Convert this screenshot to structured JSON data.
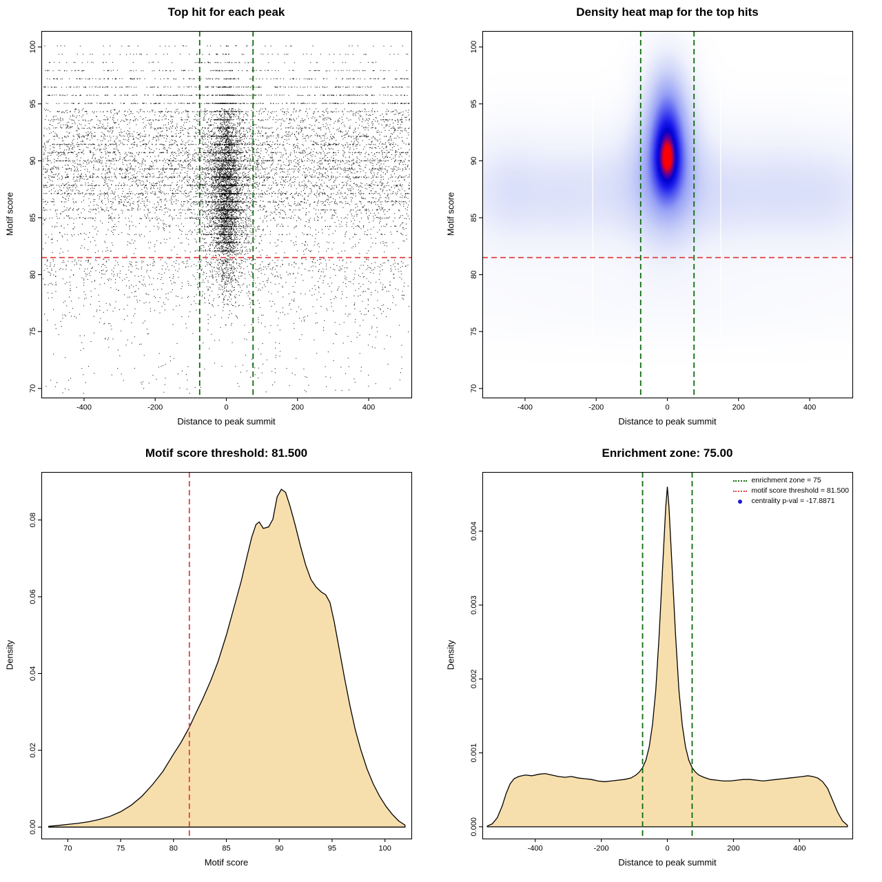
{
  "figure": {
    "background": "#ffffff"
  },
  "chart_data": [
    {
      "type": "scatter",
      "title": "Top hit for each peak",
      "xlabel": "Distance to peak summit",
      "ylabel": "Motif score",
      "xlim": [
        -520,
        520
      ],
      "ylim": [
        69.2,
        101.4
      ],
      "xticks": [
        -400,
        -200,
        0,
        200,
        400
      ],
      "xtick_labels": [
        "-400",
        "-200",
        "0",
        "200",
        "400"
      ],
      "yticks": [
        70,
        75,
        80,
        85,
        90,
        95,
        100
      ],
      "ytick_labels": [
        "70",
        "75",
        "80",
        "85",
        "90",
        "95",
        "100"
      ],
      "point_color": "#000000",
      "threshold_line": {
        "value": 81.5,
        "color": "#e04040",
        "orientation": "horizontal",
        "style": "dashed"
      },
      "zone_lines": {
        "values": [
          -75,
          75
        ],
        "color": "#0b6b0b",
        "style": "dashed"
      },
      "model": {
        "seed": 1234,
        "n_background": 8500,
        "n_cluster": 2400,
        "n_core": 1500,
        "n_tight": 900,
        "cluster_sd": 40,
        "core_sd": 20,
        "tight_sd": 11
      }
    },
    {
      "type": "heatmap",
      "title": "Density heat map for the top hits",
      "xlabel": "Distance to peak summit",
      "ylabel": "Motif score",
      "xlim": [
        -520,
        520
      ],
      "ylim": [
        69.2,
        101.4
      ],
      "xticks": [
        -400,
        -200,
        0,
        200,
        400
      ],
      "xtick_labels": [
        "-400",
        "-200",
        "0",
        "200",
        "400"
      ],
      "yticks": [
        70,
        75,
        80,
        85,
        90,
        95,
        100
      ],
      "ytick_labels": [
        "70",
        "75",
        "80",
        "85",
        "90",
        "95",
        "100"
      ],
      "threshold_line": {
        "value": 81.5,
        "color": "#e04040",
        "orientation": "horizontal",
        "style": "dashed"
      },
      "zone_lines": {
        "values": [
          -75,
          75
        ],
        "color": "#0b6b0b",
        "style": "dashed"
      },
      "colormap": [
        [
          0.0,
          "#ffffff"
        ],
        [
          0.1,
          "#f0f2fc"
        ],
        [
          0.25,
          "#cdd4f8"
        ],
        [
          0.45,
          "#96a0f5"
        ],
        [
          0.62,
          "#5055f0"
        ],
        [
          0.75,
          "#1919eb"
        ],
        [
          0.85,
          "#0000cd"
        ],
        [
          0.92,
          "#5a00a0"
        ],
        [
          1.0,
          "#ff0000"
        ]
      ],
      "model": {
        "dmax": 2.55,
        "bands": [
          {
            "y": 87.2,
            "sy": 3.9,
            "amp": 0.4,
            "x_flat": 0.72,
            "x_bump": 0.28,
            "x_sigma": 320
          },
          {
            "y": 77.3,
            "sy": 2.4,
            "amp": 0.1,
            "x_flat": 0.6,
            "x_bump": 0.4,
            "x_sigma": 260
          }
        ],
        "blobs": [
          {
            "x": 0,
            "y": 90.6,
            "sx": 58,
            "sy": 4.8,
            "amp": 1.05
          },
          {
            "x": 0,
            "y": 91.6,
            "sx": 30,
            "sy": 2.7,
            "amp": 0.85
          },
          {
            "x": 0,
            "y": 89.6,
            "sx": 26,
            "sy": 1.9,
            "amp": 0.55
          },
          {
            "x": 0,
            "y": 96.3,
            "sx": 40,
            "sy": 2.6,
            "amp": 0.3
          },
          {
            "x": -440,
            "y": 87.5,
            "sx": 55,
            "sy": 3.2,
            "amp": 0.14
          },
          {
            "x": -300,
            "y": 86.8,
            "sx": 70,
            "sy": 3.0,
            "amp": 0.1
          },
          {
            "x": -120,
            "y": 88.0,
            "sx": 60,
            "sy": 3.2,
            "amp": 0.1
          },
          {
            "x": 150,
            "y": 87.0,
            "sx": 70,
            "sy": 3.0,
            "amp": 0.1
          },
          {
            "x": 320,
            "y": 87.5,
            "sx": 75,
            "sy": 3.2,
            "amp": 0.12
          },
          {
            "x": 450,
            "y": 87.0,
            "sx": 60,
            "sy": 3.0,
            "amp": 0.11
          }
        ],
        "white_gaps": [
          -210,
          150
        ]
      }
    },
    {
      "type": "area",
      "title": "Motif score threshold: 81.500",
      "xlabel": "Motif score",
      "ylabel": "Density",
      "xlim": [
        67.5,
        102.5
      ],
      "ylim": [
        -0.003,
        0.0925
      ],
      "xticks": [
        70,
        75,
        80,
        85,
        90,
        95,
        100
      ],
      "xtick_labels": [
        "70",
        "75",
        "80",
        "85",
        "90",
        "95",
        "100"
      ],
      "yticks": [
        0,
        0.02,
        0.04,
        0.06,
        0.08
      ],
      "ytick_labels": [
        "0.00",
        "0.02",
        "0.04",
        "0.06",
        "0.08"
      ],
      "fill": "#f7dfad",
      "line_color": "#000000",
      "threshold_line": {
        "value": 81.5,
        "color": "#e04040",
        "orientation": "vertical",
        "style": "dashed"
      },
      "curve": {
        "x": [
          68.2,
          69,
          70,
          71,
          72,
          73,
          74,
          75,
          76,
          77,
          78,
          79,
          80,
          80.7,
          81.5,
          82,
          82.7,
          83.5,
          84.2,
          85,
          85.7,
          86.4,
          87,
          87.4,
          87.8,
          88.1,
          88.5,
          89,
          89.4,
          89.8,
          90.2,
          90.6,
          91,
          91.5,
          92,
          92.5,
          93,
          93.5,
          94,
          94.4,
          94.8,
          95.2,
          95.7,
          96.2,
          96.7,
          97.2,
          97.7,
          98.3,
          98.9,
          99.5,
          100.1,
          100.7,
          101.3,
          101.9
        ],
        "y": [
          0.0002,
          0.0004,
          0.0007,
          0.001,
          0.0014,
          0.002,
          0.0028,
          0.004,
          0.0057,
          0.008,
          0.011,
          0.0145,
          0.019,
          0.022,
          0.026,
          0.029,
          0.033,
          0.038,
          0.043,
          0.05,
          0.057,
          0.064,
          0.071,
          0.0755,
          0.0788,
          0.0795,
          0.0778,
          0.0782,
          0.0802,
          0.086,
          0.088,
          0.0872,
          0.0838,
          0.0788,
          0.0733,
          0.0683,
          0.0645,
          0.0625,
          0.0612,
          0.0605,
          0.0585,
          0.0535,
          0.046,
          0.0385,
          0.0315,
          0.0253,
          0.0203,
          0.0152,
          0.0112,
          0.008,
          0.0054,
          0.0033,
          0.0016,
          0.0005
        ]
      }
    },
    {
      "type": "area",
      "title": "Enrichment zone: 75.00",
      "xlabel": "Distance to peak summit",
      "ylabel": "Density",
      "xlim": [
        -560,
        560
      ],
      "ylim": [
        -0.00016,
        0.0048
      ],
      "xticks": [
        -400,
        -200,
        0,
        200,
        400
      ],
      "xtick_labels": [
        "-400",
        "-200",
        "0",
        "200",
        "400"
      ],
      "yticks": [
        0,
        0.001,
        0.002,
        0.003,
        0.004
      ],
      "ytick_labels": [
        "0.000",
        "0.001",
        "0.002",
        "0.003",
        "0.004"
      ],
      "fill": "#f7dfad",
      "line_color": "#000000",
      "zone_lines": {
        "values": [
          -75,
          75
        ],
        "color": "#0b6b0b",
        "style": "dashed"
      },
      "legend": [
        {
          "symbol": "dotted-line",
          "color": "#0b6b0b",
          "label": "enrichment zone = 75"
        },
        {
          "symbol": "dotted-line",
          "color": "#e04040",
          "label": "motif score threshold = 81.500"
        },
        {
          "symbol": "dot",
          "color": "#1a1ad9",
          "label": "centrality p-val = -17.8871"
        }
      ],
      "curve": {
        "x": [
          -545,
          -530,
          -515,
          -500,
          -488,
          -476,
          -464,
          -450,
          -430,
          -410,
          -390,
          -370,
          -350,
          -330,
          -310,
          -290,
          -270,
          -250,
          -230,
          -210,
          -190,
          -170,
          -150,
          -130,
          -110,
          -95,
          -85,
          -75,
          -65,
          -55,
          -45,
          -35,
          -25,
          -15,
          -5,
          0,
          5,
          15,
          25,
          35,
          45,
          55,
          65,
          75,
          85,
          95,
          110,
          130,
          150,
          170,
          190,
          210,
          230,
          250,
          270,
          290,
          310,
          330,
          350,
          370,
          390,
          410,
          425,
          440,
          455,
          470,
          485,
          500,
          515,
          530,
          545
        ],
        "y": [
          1e-05,
          4e-05,
          0.00012,
          0.00028,
          0.00045,
          0.00058,
          0.00065,
          0.00068,
          0.0007,
          0.00069,
          0.00071,
          0.00072,
          0.0007,
          0.00068,
          0.00067,
          0.00068,
          0.00066,
          0.00065,
          0.00064,
          0.00062,
          0.00061,
          0.00062,
          0.00063,
          0.00064,
          0.00066,
          0.0007,
          0.00074,
          0.0008,
          0.0009,
          0.00108,
          0.00138,
          0.00185,
          0.00258,
          0.00345,
          0.00432,
          0.0046,
          0.00432,
          0.00345,
          0.00258,
          0.00185,
          0.00138,
          0.00108,
          0.0009,
          0.0008,
          0.00074,
          0.0007,
          0.00067,
          0.00064,
          0.00063,
          0.00062,
          0.00062,
          0.00063,
          0.00064,
          0.00064,
          0.00063,
          0.00062,
          0.00063,
          0.00064,
          0.00065,
          0.00066,
          0.00067,
          0.00068,
          0.00069,
          0.00068,
          0.00066,
          0.00061,
          0.00052,
          0.00036,
          0.0002,
          8e-05,
          2e-05
        ]
      }
    }
  ]
}
